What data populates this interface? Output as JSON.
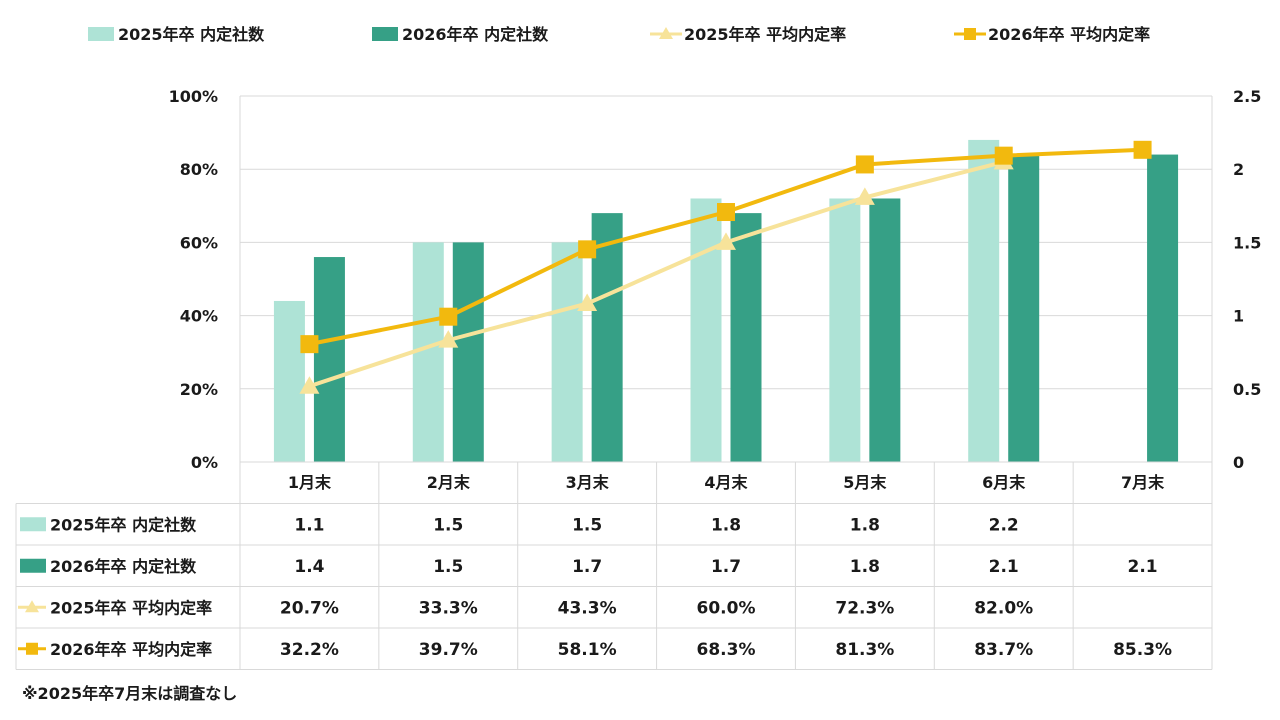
{
  "chart_data": {
    "type": "bar",
    "categories": [
      "1月末",
      "2月末",
      "3月末",
      "4月末",
      "5月末",
      "6月末",
      "7月末"
    ],
    "series": [
      {
        "name": "2025年卒 内定社数",
        "kind": "bar",
        "axis": "right",
        "color": "#aee3d6",
        "values": [
          1.1,
          1.5,
          1.5,
          1.8,
          1.8,
          2.2,
          null
        ],
        "labels": [
          "1.1",
          "1.5",
          "1.5",
          "1.8",
          "1.8",
          "2.2",
          ""
        ]
      },
      {
        "name": "2026年卒 内定社数",
        "kind": "bar",
        "axis": "right",
        "color": "#36a086",
        "values": [
          1.4,
          1.5,
          1.7,
          1.7,
          1.8,
          2.1,
          2.1
        ],
        "labels": [
          "1.4",
          "1.5",
          "1.7",
          "1.7",
          "1.8",
          "2.1",
          "2.1"
        ]
      },
      {
        "name": "2025年卒 平均内定率",
        "kind": "line",
        "axis": "left",
        "marker": "triangle",
        "color": "#f7e39a",
        "values": [
          20.7,
          33.3,
          43.3,
          60.0,
          72.3,
          82.0,
          null
        ],
        "labels": [
          "20.7%",
          "33.3%",
          "43.3%",
          "60.0%",
          "72.3%",
          "82.0%",
          ""
        ]
      },
      {
        "name": "2026年卒 平均内定率",
        "kind": "line",
        "axis": "left",
        "marker": "square",
        "color": "#f2b90e",
        "values": [
          32.2,
          39.7,
          58.1,
          68.3,
          81.3,
          83.7,
          85.3
        ],
        "labels": [
          "32.2%",
          "39.7%",
          "58.1%",
          "68.3%",
          "81.3%",
          "83.7%",
          "85.3%"
        ]
      }
    ],
    "y_left": {
      "ylim": [
        0,
        100
      ],
      "ticks": [
        0,
        20,
        40,
        60,
        80,
        100
      ],
      "tick_labels": [
        "0%",
        "20%",
        "40%",
        "60%",
        "80%",
        "100%"
      ]
    },
    "y_right": {
      "ylim": [
        0,
        2.5
      ],
      "ticks": [
        0,
        0.5,
        1,
        1.5,
        2,
        2.5
      ],
      "tick_labels": [
        "0",
        "0.5",
        "1",
        "1.5",
        "2",
        "2.5"
      ]
    },
    "grid": true,
    "legend": "top",
    "data_table": true
  },
  "note": "※2025年卒7月末は調査なし"
}
